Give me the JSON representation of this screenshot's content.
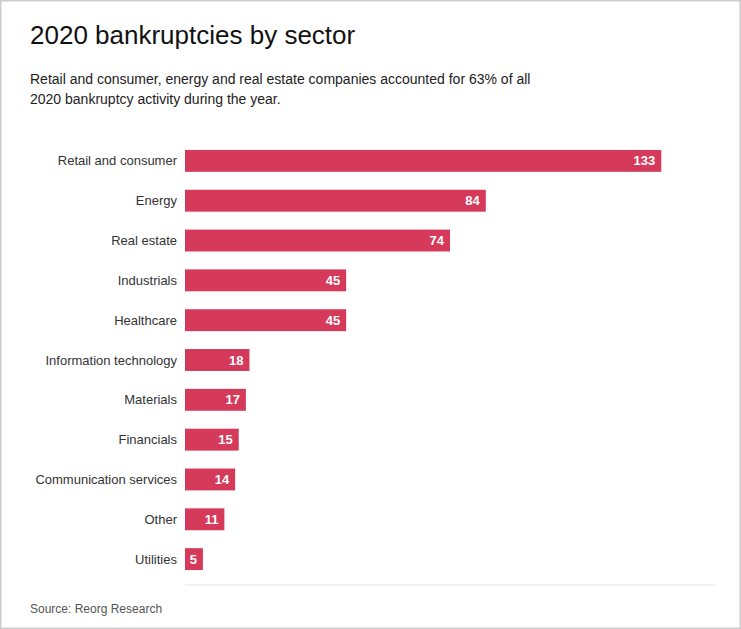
{
  "chart_data": {
    "type": "bar",
    "orientation": "horizontal",
    "title": "2020 bankruptcies by sector",
    "subtitle": "Retail and consumer, energy and real estate companies accounted for 63% of all\n2020 bankruptcy activity during the year.",
    "source": "Source: Reorg Research",
    "categories": [
      "Retail and consumer",
      "Energy",
      "Real estate",
      "Industrials",
      "Healthcare",
      "Information technology",
      "Materials",
      "Financials",
      "Communication services",
      "Other",
      "Utilities"
    ],
    "values": [
      133,
      84,
      74,
      45,
      45,
      18,
      17,
      15,
      14,
      11,
      5
    ],
    "color": "#d63a5a",
    "xlim": [
      0,
      148
    ],
    "data_labels": true,
    "tick_labels": "y"
  }
}
